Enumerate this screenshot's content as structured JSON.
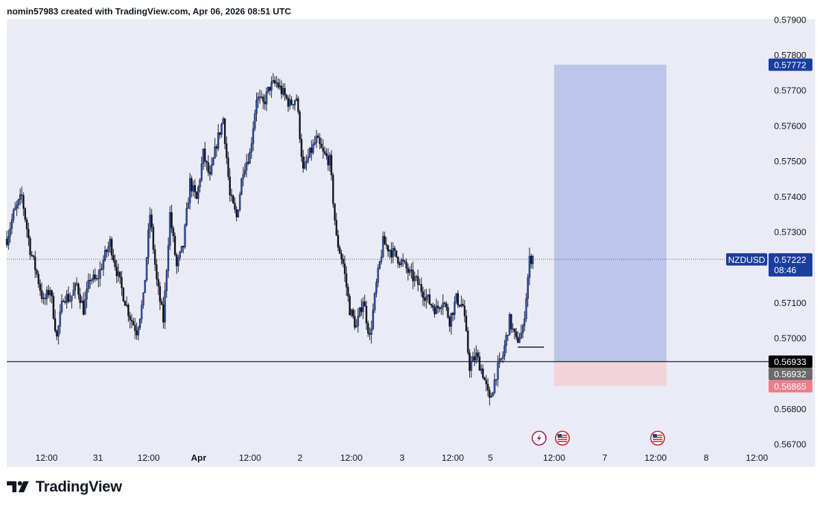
{
  "header": {
    "attribution": "nomin57983 created with TradingView.com, Apr 06, 2026 08:51 UTC"
  },
  "footer": {
    "brand": "TradingView"
  },
  "colors": {
    "background": "#ebebf5",
    "candle": "#131722",
    "candle_up_body": "#2a4fb5",
    "profit_zone": "#bcc6ea",
    "stop_zone": "#f2d3da",
    "price_badge": "#1a3e9e",
    "level_badge": "#000000",
    "stop_badge": "#f07d8a",
    "mid_badge": "#6b6b6b"
  },
  "chart_data": {
    "type": "candlestick",
    "symbol": "NZDUSD",
    "ylim": [
      0.567,
      0.579
    ],
    "y_ticks": [
      "0.56700",
      "0.56800",
      "0.57000",
      "0.57100",
      "0.57300",
      "0.57400",
      "0.57500",
      "0.57600",
      "0.57700",
      "0.57800",
      "0.57900"
    ],
    "x_ticks": [
      "12:00",
      "31",
      "12:00",
      "Apr",
      "12:00",
      "2",
      "12:00",
      "3",
      "12:00",
      "5",
      "12:00",
      "7",
      "12:00",
      "8",
      "12:00"
    ],
    "last_price": {
      "symbol_label": "NZDUSD",
      "price": "0.57222",
      "countdown": "08:46"
    },
    "horizontal_level": {
      "price_label": "0.56933",
      "value": 0.56933
    },
    "position": {
      "target_label": "0.57772",
      "target": 0.57772,
      "entry_label": "0.56932",
      "entry": 0.56932,
      "stop_label": "0.56865",
      "stop": 0.56865
    },
    "events": [
      "lightning-event-icon",
      "us-flag-icon",
      "us-flag-icon"
    ],
    "price_path": [
      [
        0,
        0.5728
      ],
      [
        4,
        0.5735
      ],
      [
        9,
        0.574
      ],
      [
        14,
        0.5725
      ],
      [
        18,
        0.5718
      ],
      [
        22,
        0.571
      ],
      [
        26,
        0.5714
      ],
      [
        30,
        0.57
      ],
      [
        34,
        0.5712
      ],
      [
        38,
        0.5711
      ],
      [
        42,
        0.5715
      ],
      [
        46,
        0.5708
      ],
      [
        50,
        0.5717
      ],
      [
        54,
        0.5716
      ],
      [
        58,
        0.5722
      ],
      [
        62,
        0.5727
      ],
      [
        66,
        0.5719
      ],
      [
        70,
        0.5712
      ],
      [
        74,
        0.5706
      ],
      [
        78,
        0.5702
      ],
      [
        82,
        0.5711
      ],
      [
        86,
        0.5735
      ],
      [
        90,
        0.5716
      ],
      [
        94,
        0.5705
      ],
      [
        98,
        0.5735
      ],
      [
        102,
        0.572
      ],
      [
        106,
        0.5726
      ],
      [
        110,
        0.5744
      ],
      [
        114,
        0.5739
      ],
      [
        118,
        0.5752
      ],
      [
        122,
        0.5745
      ],
      [
        126,
        0.5755
      ],
      [
        130,
        0.5762
      ],
      [
        134,
        0.574
      ],
      [
        138,
        0.5734
      ],
      [
        142,
        0.5748
      ],
      [
        146,
        0.5752
      ],
      [
        150,
        0.5768
      ],
      [
        154,
        0.5766
      ],
      [
        158,
        0.5771
      ],
      [
        162,
        0.5772
      ],
      [
        166,
        0.5769
      ],
      [
        170,
        0.5766
      ],
      [
        174,
        0.5768
      ],
      [
        178,
        0.5747
      ],
      [
        182,
        0.5752
      ],
      [
        186,
        0.5756
      ],
      [
        190,
        0.5752
      ],
      [
        194,
        0.575
      ],
      [
        198,
        0.5728
      ],
      [
        202,
        0.5721
      ],
      [
        206,
        0.5708
      ],
      [
        210,
        0.5703
      ],
      [
        214,
        0.5711
      ],
      [
        218,
        0.57
      ],
      [
        222,
        0.5715
      ],
      [
        226,
        0.5727
      ],
      [
        230,
        0.5725
      ],
      [
        234,
        0.5723
      ],
      [
        238,
        0.5721
      ],
      [
        242,
        0.5718
      ],
      [
        246,
        0.5716
      ],
      [
        250,
        0.5713
      ],
      [
        254,
        0.571
      ],
      [
        258,
        0.5708
      ],
      [
        262,
        0.5711
      ],
      [
        266,
        0.5705
      ],
      [
        270,
        0.5711
      ],
      [
        274,
        0.5709
      ],
      [
        278,
        0.5692
      ],
      [
        282,
        0.5695
      ],
      [
        286,
        0.569
      ],
      [
        290,
        0.5682
      ],
      [
        294,
        0.569
      ],
      [
        298,
        0.5695
      ],
      [
        302,
        0.5705
      ],
      [
        306,
        0.5699
      ],
      [
        310,
        0.5702
      ],
      [
        314,
        0.5722
      ],
      [
        316,
        0.5723
      ]
    ]
  }
}
